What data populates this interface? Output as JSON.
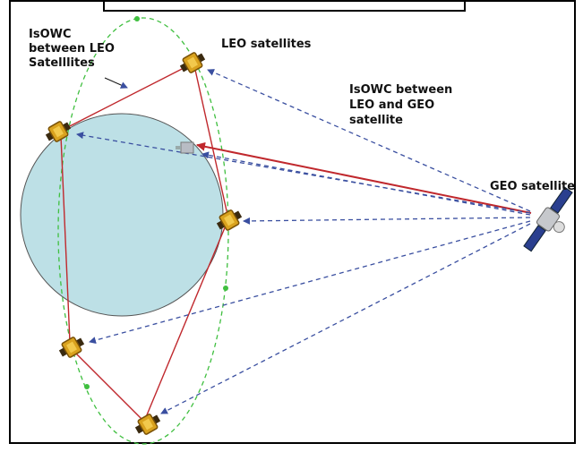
{
  "labels": {
    "leo_link": [
      "IsOWC",
      "between LEO",
      "Satelllites"
    ],
    "leo": "LEO satellites",
    "leo_geo": [
      "IsOWC between",
      "LEO and GEO",
      "satellite"
    ],
    "geo": "GEO satellite"
  }
}
